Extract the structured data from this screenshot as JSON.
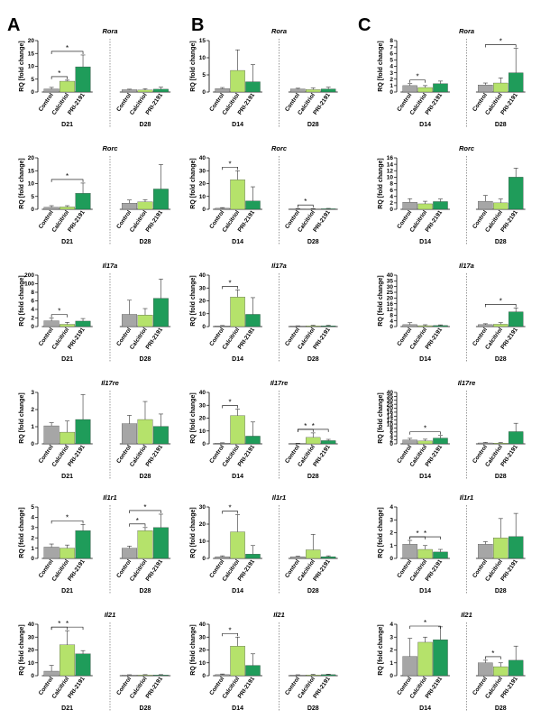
{
  "figure": {
    "panel_labels": [
      "A",
      "B",
      "C"
    ],
    "categories": [
      "Control",
      "Calcitriol",
      "PRI-2191"
    ],
    "ylabel": "RQ [fold change]",
    "colors": {
      "control": "#a6a6a6",
      "calcitriol": "#b5e26b",
      "pri2191": "#1f9c5a"
    }
  },
  "chart_data": [
    {
      "type": "bar",
      "panel": "A",
      "row": 0,
      "title": "Rora",
      "ylabel": "RQ [fold change]",
      "categories": [
        "Control",
        "Calcitriol",
        "PRI-2191"
      ],
      "groups": [
        "D21",
        "D28"
      ],
      "ylim": [
        0,
        20
      ],
      "yticks": [
        "0",
        "5",
        "10",
        "15",
        "20"
      ],
      "series": [
        {
          "group": "D21",
          "values": [
            1.2,
            4.2,
            9.8
          ],
          "errors": [
            0.6,
            0.4,
            4.6
          ]
        },
        {
          "group": "D28",
          "values": [
            0.9,
            0.8,
            1.1
          ],
          "errors": [
            0.2,
            0.5,
            0.8
          ]
        }
      ],
      "sig": [
        {
          "group": 0,
          "from": 0,
          "to": 1,
          "label": "*"
        },
        {
          "group": 0,
          "from": 0,
          "to": 2,
          "label": "*"
        }
      ]
    },
    {
      "type": "bar",
      "panel": "A",
      "row": 1,
      "title": "Rorc",
      "ylabel": "RQ [fold change]",
      "categories": [
        "Control",
        "Calcitriol",
        "PRI-2191"
      ],
      "groups": [
        "D21",
        "D28"
      ],
      "ylim": [
        0,
        20
      ],
      "yticks": [
        "0",
        "5",
        "10",
        "15",
        "20"
      ],
      "series": [
        {
          "group": "D21",
          "values": [
            0.8,
            0.9,
            6.2
          ],
          "errors": [
            0.6,
            0.5,
            4.0
          ]
        },
        {
          "group": "D28",
          "values": [
            2.4,
            2.9,
            7.9
          ],
          "errors": [
            1.2,
            0.8,
            9.5
          ]
        }
      ],
      "sig": [
        {
          "group": 0,
          "from": 0,
          "to": 2,
          "label": "*"
        }
      ]
    },
    {
      "type": "bar",
      "panel": "A",
      "row": 2,
      "title": "Il17a",
      "ylabel": "RQ [fold change]",
      "categories": [
        "Control",
        "Calcitriol",
        "PRI-2191"
      ],
      "groups": [
        "D21",
        "D28"
      ],
      "ylim": [
        0,
        8
      ],
      "yticks": [
        "0",
        "2",
        "4",
        "6",
        "8",
        "100",
        "200"
      ],
      "axis_break": true,
      "series": [
        {
          "group": "D21",
          "values": [
            0.9,
            0.35,
            0.85
          ],
          "errors": [
            0.4,
            0.3,
            0.4
          ]
        },
        {
          "group": "D28",
          "values": [
            1.9,
            1.8,
            4.4
          ],
          "errors": [
            2.2,
            1.0,
            3.0
          ]
        }
      ],
      "sig": [
        {
          "group": 0,
          "from": 0,
          "to": 1,
          "label": "*"
        }
      ]
    },
    {
      "type": "bar",
      "panel": "A",
      "row": 3,
      "title": "Il17re",
      "ylabel": "RQ [fold change]",
      "categories": [
        "Control",
        "Calcitriol",
        "PRI-2191"
      ],
      "groups": [
        "D21",
        "D28"
      ],
      "ylim": [
        0,
        3
      ],
      "yticks": [
        "0",
        "1",
        "2",
        "3"
      ],
      "series": [
        {
          "group": "D21",
          "values": [
            1.05,
            0.68,
            1.42
          ],
          "errors": [
            0.18,
            0.65,
            1.45
          ]
        },
        {
          "group": "D28",
          "values": [
            1.18,
            1.42,
            1.02
          ],
          "errors": [
            0.48,
            1.05,
            0.72
          ]
        }
      ],
      "sig": []
    },
    {
      "type": "bar",
      "panel": "A",
      "row": 4,
      "title": "Il1r1",
      "ylabel": "RQ [fold change]",
      "categories": [
        "Control",
        "Calcitriol",
        "PRI-2191"
      ],
      "groups": [
        "D21",
        "D28"
      ],
      "ylim": [
        0,
        5
      ],
      "yticks": [
        "0",
        "1",
        "2",
        "3",
        "4",
        "5"
      ],
      "series": [
        {
          "group": "D21",
          "values": [
            1.1,
            1.0,
            2.7
          ],
          "errors": [
            0.3,
            0.3,
            0.6
          ]
        },
        {
          "group": "D28",
          "values": [
            1.0,
            2.7,
            3.0
          ],
          "errors": [
            0.2,
            0.3,
            1.3
          ]
        }
      ],
      "sig": [
        {
          "group": 0,
          "from": 0,
          "to": 2,
          "label": "*"
        },
        {
          "group": 1,
          "from": 0,
          "to": 1,
          "label": "*"
        },
        {
          "group": 1,
          "from": 0,
          "to": 2,
          "label": "*"
        }
      ]
    },
    {
      "type": "bar",
      "panel": "A",
      "row": 5,
      "title": "Il21",
      "ylabel": "RQ [fold change]",
      "categories": [
        "Control",
        "Calcitriol",
        "PRI-2191"
      ],
      "groups": [
        "D21",
        "D28"
      ],
      "ylim": [
        0,
        40
      ],
      "yticks": [
        "0",
        "10",
        "20",
        "30",
        "40"
      ],
      "series": [
        {
          "group": "D21",
          "values": [
            3.5,
            24.0,
            17.0
          ],
          "errors": [
            4.5,
            11.0,
            2.5
          ]
        },
        {
          "group": "D28",
          "values": [
            0.4,
            0.5,
            0.5
          ],
          "errors": [
            0.3,
            0.3,
            0.3
          ]
        }
      ],
      "sig": [
        {
          "group": 0,
          "from": 0,
          "to": 1,
          "label": "*"
        },
        {
          "group": 0,
          "from": 0,
          "to": 2,
          "label": "*"
        }
      ]
    },
    {
      "type": "bar",
      "panel": "B",
      "row": 0,
      "title": "Rora",
      "ylabel": "RQ [fold change]",
      "categories": [
        "Control",
        "Calcitriol",
        "PRI-2191"
      ],
      "groups": [
        "D14",
        "D28"
      ],
      "ylim": [
        0,
        15
      ],
      "yticks": [
        "0",
        "5",
        "10",
        "15"
      ],
      "series": [
        {
          "group": "D14",
          "values": [
            1.0,
            6.3,
            3.0
          ],
          "errors": [
            0.3,
            6.0,
            5.0
          ]
        },
        {
          "group": "D28",
          "values": [
            0.9,
            0.7,
            0.9
          ],
          "errors": [
            0.2,
            0.5,
            0.5
          ]
        }
      ],
      "sig": []
    },
    {
      "type": "bar",
      "panel": "B",
      "row": 1,
      "title": "Rorc",
      "ylabel": "RQ [fold change]",
      "categories": [
        "Control",
        "Calcitriol",
        "PRI-2191"
      ],
      "groups": [
        "D14",
        "D28"
      ],
      "ylim": [
        0,
        40
      ],
      "yticks": [
        "0",
        "10",
        "20",
        "30",
        "40"
      ],
      "series": [
        {
          "group": "D14",
          "values": [
            0.8,
            23.0,
            6.5
          ],
          "errors": [
            0.5,
            7.0,
            11.0
          ]
        },
        {
          "group": "D28",
          "values": [
            0.3,
            0.2,
            0.4
          ],
          "errors": [
            0.3,
            0.3,
            0.3
          ]
        }
      ],
      "sig": [
        {
          "group": 0,
          "from": 0,
          "to": 1,
          "label": "*"
        },
        {
          "group": 1,
          "from": 0,
          "to": 1,
          "label": "*"
        }
      ]
    },
    {
      "type": "bar",
      "panel": "B",
      "row": 2,
      "title": "Il17a",
      "ylabel": "RQ [fold change]",
      "categories": [
        "Control",
        "Calcitriol",
        "PRI-2191"
      ],
      "groups": [
        "D14",
        "D28"
      ],
      "ylim": [
        0,
        40
      ],
      "yticks": [
        "0",
        "10",
        "20",
        "30",
        "40"
      ],
      "series": [
        {
          "group": "D14",
          "values": [
            0.5,
            23.0,
            9.5
          ],
          "errors": [
            0.3,
            5.5,
            13.0
          ]
        },
        {
          "group": "D28",
          "values": [
            0.4,
            0.6,
            0.6
          ],
          "errors": [
            0.2,
            0.4,
            0.4
          ]
        }
      ],
      "sig": [
        {
          "group": 0,
          "from": 0,
          "to": 1,
          "label": "*"
        }
      ]
    },
    {
      "type": "bar",
      "panel": "B",
      "row": 3,
      "title": "Il17re",
      "ylabel": "RQ [fold change]",
      "categories": [
        "Control",
        "Calcitriol",
        "PRI-2191"
      ],
      "groups": [
        "D14",
        "D28"
      ],
      "ylim": [
        0,
        40
      ],
      "yticks": [
        "0",
        "10",
        "20",
        "30",
        "40"
      ],
      "series": [
        {
          "group": "D14",
          "values": [
            0.5,
            22.0,
            6.0
          ],
          "errors": [
            0.3,
            5.0,
            11.0
          ]
        },
        {
          "group": "D28",
          "values": [
            0.3,
            5.0,
            2.5
          ],
          "errors": [
            0.2,
            3.5,
            1.0
          ]
        }
      ],
      "sig": [
        {
          "group": 0,
          "from": 0,
          "to": 1,
          "label": "*"
        },
        {
          "group": 1,
          "from": 0,
          "to": 1,
          "label": "*"
        },
        {
          "group": 1,
          "from": 0,
          "to": 2,
          "label": "*"
        }
      ]
    },
    {
      "type": "bar",
      "panel": "B",
      "row": 4,
      "title": "Il1r1",
      "ylabel": "RQ [fold change]",
      "categories": [
        "Control",
        "Calcitriol",
        "PRI-2191"
      ],
      "groups": [
        "D14",
        "D28"
      ],
      "ylim": [
        0,
        30
      ],
      "yticks": [
        "0",
        "10",
        "20",
        "30"
      ],
      "series": [
        {
          "group": "D14",
          "values": [
            1.0,
            15.5,
            2.5
          ],
          "errors": [
            0.5,
            10.0,
            5.0
          ]
        },
        {
          "group": "D28",
          "values": [
            1.0,
            5.0,
            1.0
          ],
          "errors": [
            0.3,
            9.0,
            0.5
          ]
        }
      ],
      "sig": [
        {
          "group": 0,
          "from": 0,
          "to": 1,
          "label": "*"
        }
      ]
    },
    {
      "type": "bar",
      "panel": "B",
      "row": 5,
      "title": "Il21",
      "ylabel": "RQ [fold change]",
      "categories": [
        "Control",
        "Calcitriol",
        "PRI-2191"
      ],
      "groups": [
        "D14",
        "D28"
      ],
      "ylim": [
        0,
        40
      ],
      "yticks": [
        "0",
        "10",
        "20",
        "30",
        "40"
      ],
      "series": [
        {
          "group": "D14",
          "values": [
            0.8,
            23.0,
            8.0
          ],
          "errors": [
            0.5,
            7.0,
            9.0
          ]
        },
        {
          "group": "D28",
          "values": [
            0.4,
            0.6,
            0.8
          ],
          "errors": [
            0.3,
            0.4,
            0.4
          ]
        }
      ],
      "sig": [
        {
          "group": 0,
          "from": 0,
          "to": 1,
          "label": "*"
        }
      ]
    },
    {
      "type": "bar",
      "panel": "C",
      "row": 0,
      "title": "Rora",
      "ylabel": "RQ [fold change]",
      "categories": [
        "Control",
        "Calcitriol",
        "PRI-2191"
      ],
      "groups": [
        "D14",
        "D28"
      ],
      "ylim": [
        0,
        8
      ],
      "yticks": [
        "0",
        "1",
        "2",
        "3",
        "4",
        "5",
        "6",
        "7",
        "8"
      ],
      "series": [
        {
          "group": "D14",
          "values": [
            1.0,
            0.7,
            1.3
          ],
          "errors": [
            0.3,
            0.3,
            0.4
          ]
        },
        {
          "group": "D28",
          "values": [
            1.1,
            1.4,
            3.0
          ],
          "errors": [
            0.3,
            0.8,
            3.8
          ]
        }
      ],
      "sig": [
        {
          "group": 0,
          "from": 0,
          "to": 1,
          "label": "*"
        },
        {
          "group": 1,
          "from": 0,
          "to": 2,
          "label": "*"
        }
      ]
    },
    {
      "type": "bar",
      "panel": "C",
      "row": 1,
      "title": "Rorc",
      "ylabel": "RQ [fold change]",
      "categories": [
        "Control",
        "Calcitriol",
        "PRI-2191"
      ],
      "groups": [
        "D14",
        "D28"
      ],
      "ylim": [
        0,
        16
      ],
      "yticks": [
        "0",
        "2",
        "4",
        "6",
        "8",
        "10",
        "12",
        "14",
        "16"
      ],
      "series": [
        {
          "group": "D14",
          "values": [
            2.2,
            1.7,
            2.4
          ],
          "errors": [
            1.1,
            0.8,
            0.8
          ]
        },
        {
          "group": "D28",
          "values": [
            2.5,
            2.0,
            10.0
          ],
          "errors": [
            1.8,
            1.2,
            2.8
          ]
        }
      ],
      "sig": []
    },
    {
      "type": "bar",
      "panel": "C",
      "row": 2,
      "title": "Il17a",
      "ylabel": "RQ [fold change]",
      "categories": [
        "Control",
        "Calcitriol",
        "PRI-2191"
      ],
      "groups": [
        "D14",
        "D28"
      ],
      "ylim": [
        0,
        40
      ],
      "yticks": [
        "0",
        "4",
        "8",
        "12",
        "16",
        "20",
        "25",
        "30",
        "35",
        "40"
      ],
      "series": [
        {
          "group": "D14",
          "values": [
            1.5,
            0.7,
            0.8
          ],
          "errors": [
            1.5,
            0.7,
            0.5
          ]
        },
        {
          "group": "D28",
          "values": [
            1.5,
            1.8,
            11.5
          ],
          "errors": [
            0.7,
            1.2,
            3.0
          ]
        }
      ],
      "sig": [
        {
          "group": 1,
          "from": 0,
          "to": 2,
          "label": "*"
        }
      ]
    },
    {
      "type": "bar",
      "panel": "C",
      "row": 3,
      "title": "Il17re",
      "ylabel": "RQ [fold change]",
      "categories": [
        "Control",
        "Calcitriol",
        "PRI-2191"
      ],
      "groups": [
        "D14",
        "D28"
      ],
      "ylim": [
        0,
        40
      ],
      "yticks": [
        "0",
        "2",
        "4",
        "6",
        "8",
        "10",
        "12",
        "14",
        "16",
        "20",
        "25",
        "30",
        "35",
        "40"
      ],
      "series": [
        {
          "group": "D14",
          "values": [
            3.0,
            2.3,
            4.5
          ],
          "errors": [
            1.3,
            1.3,
            2.0
          ]
        },
        {
          "group": "D28",
          "values": [
            0.7,
            0.6,
            9.5
          ],
          "errors": [
            0.4,
            0.4,
            6.5
          ]
        }
      ],
      "sig": [
        {
          "group": 0,
          "from": 0,
          "to": 2,
          "label": "*"
        }
      ]
    },
    {
      "type": "bar",
      "panel": "C",
      "row": 4,
      "title": "Il1r1",
      "ylabel": "RQ [fold change]",
      "categories": [
        "Control",
        "Calcitriol",
        "PRI-2191"
      ],
      "groups": [
        "D14",
        "D28"
      ],
      "ylim": [
        0,
        4
      ],
      "yticks": [
        "0",
        "1",
        "2",
        "3",
        "4"
      ],
      "series": [
        {
          "group": "D14",
          "values": [
            1.1,
            0.7,
            0.5
          ],
          "errors": [
            0.3,
            0.3,
            0.2
          ]
        },
        {
          "group": "D28",
          "values": [
            1.1,
            1.6,
            1.7
          ],
          "errors": [
            0.2,
            1.5,
            1.8
          ]
        }
      ],
      "sig": [
        {
          "group": 0,
          "from": 0,
          "to": 1,
          "label": "*"
        },
        {
          "group": 0,
          "from": 0,
          "to": 2,
          "label": "*"
        }
      ]
    },
    {
      "type": "bar",
      "panel": "C",
      "row": 5,
      "title": "Il21",
      "ylabel": "RQ [fold change]",
      "categories": [
        "Control",
        "Calcitriol",
        "PRI-2191"
      ],
      "groups": [
        "D14",
        "D28"
      ],
      "ylim": [
        0,
        4
      ],
      "yticks": [
        "0",
        "1",
        "2",
        "3",
        "4"
      ],
      "series": [
        {
          "group": "D14",
          "values": [
            1.5,
            2.6,
            2.8
          ],
          "errors": [
            1.4,
            0.4,
            1.0
          ]
        },
        {
          "group": "D28",
          "values": [
            1.0,
            0.7,
            1.2
          ],
          "errors": [
            0.2,
            0.3,
            1.1
          ]
        }
      ],
      "sig": [
        {
          "group": 0,
          "from": 0,
          "to": 2,
          "label": "*"
        },
        {
          "group": 1,
          "from": 0,
          "to": 1,
          "label": "*"
        }
      ]
    }
  ]
}
